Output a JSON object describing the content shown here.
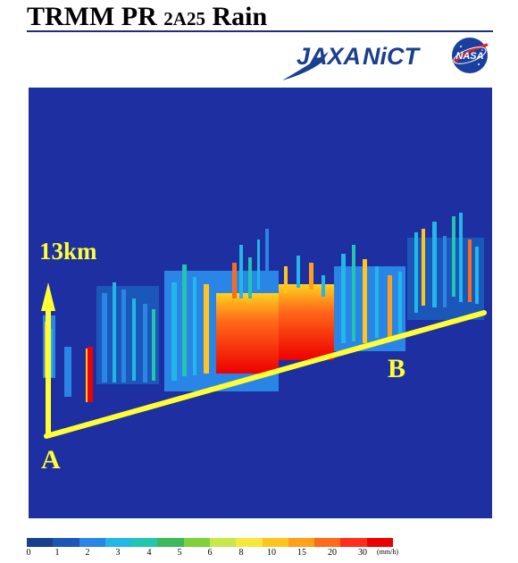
{
  "header": {
    "title_main": "TRMM PR ",
    "title_product": "2A25",
    "title_suffix": " Rain",
    "logo_jaxa": "JAXA",
    "logo_nict": "NiCT",
    "logo_nasa": "NASA"
  },
  "panel": {
    "height_label": "13km",
    "point_a": "A",
    "point_b": "B"
  },
  "colorbar": {
    "ticks": [
      "0",
      "1",
      "2",
      "3",
      "4",
      "5",
      "6",
      "8",
      "10",
      "15",
      "20",
      "30"
    ],
    "unit": "(mm/h)",
    "colors": [
      "#1a3f8f",
      "#1b57b8",
      "#2a86e6",
      "#22b7e8",
      "#22c6b0",
      "#3db85a",
      "#7fd13a",
      "#c8e84a",
      "#f5e83a",
      "#ffc51e",
      "#ff9f1a",
      "#ff6a1a",
      "#ff2f1a",
      "#ee0000"
    ]
  },
  "colors": {
    "background": "#1e2fa2",
    "annotation": "#ffff33"
  }
}
